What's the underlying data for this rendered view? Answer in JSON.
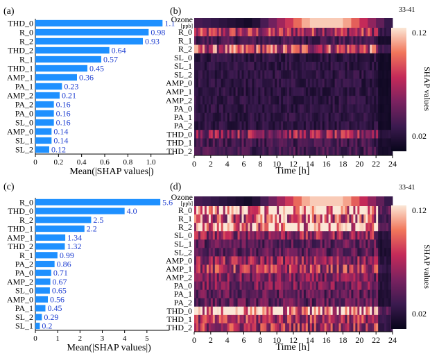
{
  "heatmap_color_range": [
    0.0,
    0.13
  ],
  "colors": {
    "bar": "#1e90ff",
    "value_text": "#1f3fd1"
  },
  "chart_data": [
    {
      "panel": "(a)",
      "type": "bar",
      "orientation": "horizontal",
      "xlabel": "Mean(|SHAP values|)",
      "xlim": [
        0,
        1.2
      ],
      "xticks": [
        0,
        0.2,
        0.4,
        0.6,
        0.8,
        1.0
      ],
      "xtick_labels": [
        "0",
        "0.2",
        "0.4",
        "0.6",
        "0.8",
        "1.0"
      ],
      "categories": [
        "THD_0",
        "R_0",
        "R_2",
        "THD_2",
        "R_1",
        "THD_1",
        "AMP_1",
        "PA_1",
        "AMP_2",
        "PA_2",
        "PA_0",
        "SL_0",
        "AMP_0",
        "SL_1",
        "SL_2"
      ],
      "values": [
        1.1,
        0.98,
        0.93,
        0.64,
        0.57,
        0.45,
        0.36,
        0.23,
        0.21,
        0.16,
        0.16,
        0.16,
        0.14,
        0.14,
        0.12
      ],
      "value_labels": [
        "1.1",
        "0.98",
        "0.93",
        "0.64",
        "0.57",
        "0.45",
        "0.36",
        "0.23",
        "0.21",
        "0.16",
        "0.16",
        "0.16",
        "0.14",
        "0.14",
        "0.12"
      ]
    },
    {
      "panel": "(b)",
      "type": "heatmap",
      "top_row_label": "Ozone",
      "top_row_unit": "[ppb]",
      "top_row_scale": "33-41",
      "rows": [
        "R_0",
        "R_1",
        "R_2",
        "SL_0",
        "SL_1",
        "SL_2",
        "AMP_0",
        "AMP_1",
        "AMP_2",
        "PA_0",
        "PA_1",
        "PA_2",
        "THD_0",
        "THD_1",
        "THD_2"
      ],
      "xlabel": "Time [h]",
      "xlim": [
        0,
        24
      ],
      "xticks": [
        0,
        2,
        4,
        6,
        8,
        10,
        12,
        14,
        16,
        18,
        20,
        22,
        24
      ],
      "colorbar_label": "SHAP values",
      "colorbar_ticks": [
        0.12,
        0.02
      ],
      "colorbar_range": [
        0.0,
        0.13
      ],
      "row_mean_values": [
        0.07,
        0.03,
        0.08,
        0.02,
        0.02,
        0.02,
        0.02,
        0.02,
        0.02,
        0.02,
        0.02,
        0.02,
        0.06,
        0.03,
        0.03
      ]
    },
    {
      "panel": "(c)",
      "type": "bar",
      "orientation": "horizontal",
      "xlabel": "Mean(|SHAP values|)",
      "xlim": [
        0,
        6
      ],
      "xticks": [
        0,
        1,
        2,
        3,
        4,
        5
      ],
      "xtick_labels": [
        "0",
        "1",
        "2",
        "3",
        "4",
        "5"
      ],
      "categories": [
        "R_0",
        "THD_0",
        "R_2",
        "THD_1",
        "AMP_1",
        "THD_2",
        "R_1",
        "PA_2",
        "PA_0",
        "AMP_2",
        "SL_0",
        "AMP_0",
        "PA_1",
        "SL_2",
        "SL_1"
      ],
      "values": [
        5.6,
        4.0,
        2.5,
        2.2,
        1.34,
        1.32,
        0.99,
        0.86,
        0.71,
        0.67,
        0.65,
        0.56,
        0.45,
        0.29,
        0.2
      ],
      "value_labels": [
        "5.6",
        "4.0",
        "2.5",
        "2.2",
        "1.34",
        "1.32",
        "0.99",
        "0.86",
        "0.71",
        "0.67",
        "0.65",
        "0.56",
        "0.45",
        "0.29",
        "0.2"
      ]
    },
    {
      "panel": "(d)",
      "type": "heatmap",
      "top_row_label": "Ozone",
      "top_row_unit": "[ppb]",
      "top_row_scale": "33-41",
      "rows": [
        "R_0",
        "R_1",
        "R_2",
        "SL_0",
        "SL_1",
        "SL_2",
        "AMP_0",
        "AMP_1",
        "AMP_2",
        "PA_0",
        "PA_1",
        "PA_2",
        "THD_0",
        "THD_1",
        "THD_2"
      ],
      "xlabel": "Time [h]",
      "xlim": [
        0,
        24
      ],
      "xticks": [
        0,
        2,
        4,
        6,
        8,
        10,
        12,
        14,
        16,
        18,
        20,
        22,
        24
      ],
      "colorbar_label": "SHAP values",
      "colorbar_ticks": [
        0.12,
        0.02
      ],
      "colorbar_range": [
        0.0,
        0.13
      ],
      "row_mean_values": [
        0.13,
        0.09,
        0.12,
        0.06,
        0.04,
        0.04,
        0.06,
        0.07,
        0.05,
        0.05,
        0.04,
        0.04,
        0.12,
        0.07,
        0.07
      ]
    }
  ]
}
